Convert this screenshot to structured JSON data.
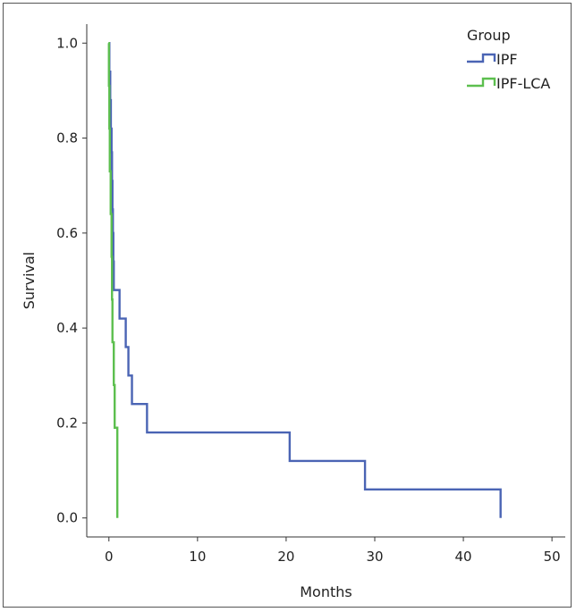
{
  "chart_data": {
    "type": "line",
    "title": "",
    "xlabel": "Months",
    "ylabel": "Survival",
    "xlim": [
      -2.5,
      51.5
    ],
    "ylim": [
      -0.04,
      1.04
    ],
    "x_ticks": [
      0,
      10,
      20,
      30,
      40,
      50
    ],
    "y_ticks": [
      0.0,
      0.2,
      0.4,
      0.6,
      0.8,
      1.0
    ],
    "y_tick_labels": [
      "0.0",
      "0.2",
      "0.4",
      "0.6",
      "0.8",
      "1.0"
    ],
    "grid": false,
    "legend": {
      "title": "Group",
      "placement": "top-right"
    },
    "series": [
      {
        "name": "IPF",
        "color": "#4a64b4",
        "steps": [
          [
            0,
            1.0
          ],
          [
            0.05,
            0.94
          ],
          [
            0.15,
            0.88
          ],
          [
            0.22,
            0.82
          ],
          [
            0.3,
            0.77
          ],
          [
            0.35,
            0.71
          ],
          [
            0.4,
            0.65
          ],
          [
            0.45,
            0.6
          ],
          [
            0.5,
            0.54
          ],
          [
            0.55,
            0.48
          ],
          [
            1.2,
            0.42
          ],
          [
            1.9,
            0.36
          ],
          [
            2.2,
            0.3
          ],
          [
            2.6,
            0.24
          ],
          [
            4.3,
            0.18
          ],
          [
            20.4,
            0.12
          ],
          [
            28.9,
            0.06
          ],
          [
            44.2,
            0.0
          ]
        ],
        "end_x": 44.2
      },
      {
        "name": "IPF-LCA",
        "color": "#5cbf4e",
        "steps": [
          [
            -0.05,
            1.0
          ],
          [
            0.0,
            0.91
          ],
          [
            0.05,
            0.82
          ],
          [
            0.1,
            0.73
          ],
          [
            0.2,
            0.64
          ],
          [
            0.3,
            0.55
          ],
          [
            0.35,
            0.46
          ],
          [
            0.4,
            0.37
          ],
          [
            0.55,
            0.28
          ],
          [
            0.65,
            0.19
          ],
          [
            0.95,
            0.0
          ]
        ],
        "end_x": 0.95
      }
    ]
  }
}
